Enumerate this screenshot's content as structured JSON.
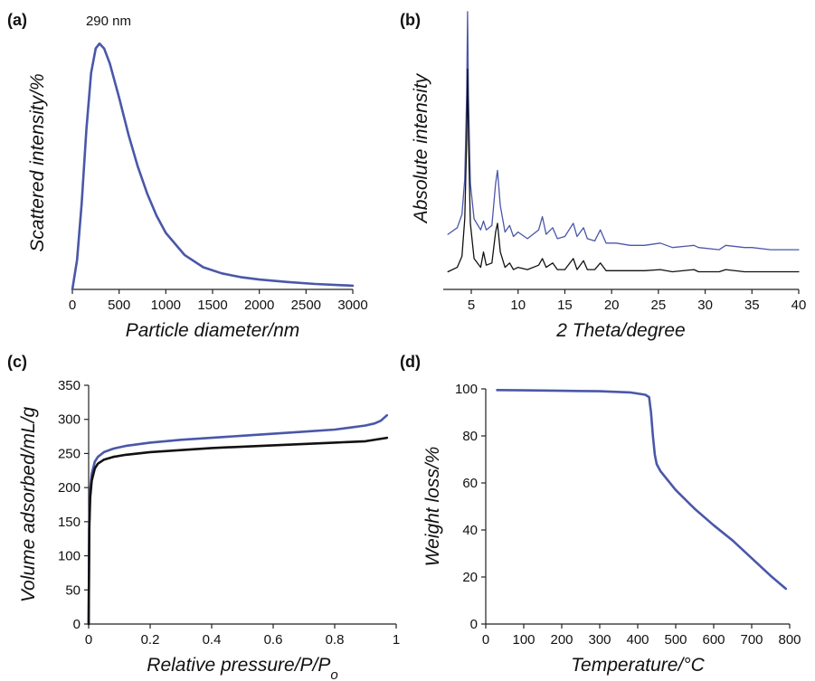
{
  "colors": {
    "blue": "#4a57a9",
    "black": "#111111"
  },
  "chart_data": [
    {
      "panel_label": "(a)",
      "type": "line",
      "xlabel": "Particle diameter/nm",
      "ylabel": "Scattered intensity/%",
      "xlim": [
        0,
        3000
      ],
      "xticks": [
        0,
        500,
        1000,
        1500,
        2000,
        2500,
        3000
      ],
      "grid": false,
      "annotation": "290 nm",
      "annotation_x": 290,
      "series": [
        {
          "color": "#4a57a9",
          "x": [
            0,
            50,
            100,
            150,
            200,
            250,
            290,
            340,
            400,
            500,
            600,
            700,
            800,
            900,
            1000,
            1200,
            1400,
            1600,
            1800,
            2000,
            2300,
            2600,
            3000
          ],
          "y": [
            0,
            12,
            35,
            65,
            88,
            98,
            100,
            98,
            92,
            78,
            63,
            50,
            39,
            30,
            23,
            14,
            9,
            6.5,
            5,
            4,
            3,
            2.2,
            1.5
          ]
        }
      ]
    },
    {
      "panel_label": "(b)",
      "type": "line",
      "xlabel": "2 Theta/degree",
      "ylabel": "Absolute intensity",
      "xlim": [
        2,
        40
      ],
      "xticks": [
        5,
        10,
        15,
        20,
        25,
        30,
        35,
        40
      ],
      "grid": false,
      "series": [
        {
          "color": "#4a57a9",
          "x": [
            2.5,
            3.5,
            4.0,
            4.3,
            4.5,
            4.6,
            4.7,
            4.9,
            5.3,
            6.0,
            6.3,
            6.6,
            7.2,
            7.6,
            7.8,
            8.1,
            8.6,
            9.1,
            9.5,
            10.0,
            11.0,
            12.2,
            12.6,
            13.0,
            13.7,
            14.2,
            15.0,
            15.9,
            16.3,
            17.0,
            17.4,
            18.2,
            18.8,
            19.4,
            20.5,
            22.0,
            23.5,
            25.2,
            26.5,
            28.8,
            29.3,
            31.5,
            32.2,
            34.2,
            35.0,
            37.0,
            40.0
          ],
          "y": [
            17,
            20,
            26,
            42,
            80,
            118,
            80,
            40,
            24,
            19,
            23,
            19,
            21,
            40,
            46,
            30,
            18,
            21,
            16,
            18,
            15,
            19,
            25,
            17,
            20,
            15,
            16,
            22,
            16,
            20,
            15,
            14,
            19,
            13,
            13,
            12,
            12,
            13,
            11,
            12,
            11,
            10,
            12,
            11,
            11,
            10,
            10
          ]
        },
        {
          "color": "#111111",
          "x": [
            2.5,
            3.5,
            4.0,
            4.3,
            4.5,
            4.6,
            4.7,
            4.9,
            5.3,
            6.0,
            6.3,
            6.6,
            7.2,
            7.6,
            7.8,
            8.1,
            8.6,
            9.1,
            9.5,
            10.0,
            11.0,
            12.2,
            12.6,
            13.0,
            13.7,
            14.2,
            15.0,
            15.9,
            16.3,
            17.0,
            17.4,
            18.2,
            18.8,
            19.4,
            20.5,
            22.0,
            23.5,
            25.2,
            26.5,
            28.8,
            29.3,
            31.5,
            32.2,
            34.2,
            35.0,
            37.0,
            40.0
          ],
          "y": [
            0,
            2,
            7,
            24,
            60,
            92,
            60,
            22,
            6,
            2,
            9,
            3,
            4,
            18,
            22,
            9,
            2,
            4,
            1,
            2,
            1,
            3,
            6,
            2,
            4,
            1,
            1,
            6,
            1,
            5,
            1,
            1,
            4,
            0.5,
            0.5,
            0.5,
            0.5,
            1,
            0,
            1,
            0,
            0,
            1,
            0,
            0,
            0,
            0
          ]
        }
      ]
    },
    {
      "panel_label": "(c)",
      "type": "line",
      "xlabel": "Relative pressure/P/P",
      "xlabel_sub": "o",
      "ylabel": "Volume adsorbed/mL/g",
      "xlim": [
        0,
        1
      ],
      "ylim": [
        0,
        350
      ],
      "xticks": [
        0,
        0.2,
        0.4,
        0.6,
        0.8,
        1
      ],
      "yticks": [
        0,
        50,
        100,
        150,
        200,
        250,
        300,
        350
      ],
      "grid": false,
      "series": [
        {
          "color": "#4a57a9",
          "x": [
            0,
            0.002,
            0.005,
            0.01,
            0.02,
            0.03,
            0.05,
            0.08,
            0.12,
            0.2,
            0.3,
            0.4,
            0.5,
            0.6,
            0.7,
            0.8,
            0.85,
            0.9,
            0.93,
            0.95,
            0.97
          ],
          "y": [
            0,
            150,
            195,
            220,
            238,
            245,
            252,
            257,
            261,
            266,
            270,
            273,
            276,
            279,
            282,
            285,
            288,
            291,
            294,
            298,
            306
          ]
        },
        {
          "color": "#111111",
          "x": [
            0,
            0.002,
            0.005,
            0.01,
            0.02,
            0.03,
            0.05,
            0.08,
            0.12,
            0.2,
            0.3,
            0.4,
            0.5,
            0.6,
            0.7,
            0.8,
            0.9,
            0.97
          ],
          "y": [
            0,
            140,
            185,
            210,
            228,
            235,
            241,
            245,
            248,
            252,
            255,
            258,
            260,
            262,
            264,
            266,
            268,
            273
          ]
        }
      ]
    },
    {
      "panel_label": "(d)",
      "type": "line",
      "xlabel": "Temperature/°C",
      "ylabel": "Weight loss/%",
      "xlim": [
        0,
        800
      ],
      "ylim": [
        0,
        100
      ],
      "xticks": [
        0,
        100,
        200,
        300,
        400,
        500,
        600,
        700,
        800
      ],
      "yticks": [
        0,
        20,
        40,
        60,
        80,
        100
      ],
      "grid": false,
      "series": [
        {
          "color": "#4a57a9",
          "x": [
            30,
            100,
            200,
            300,
            380,
            420,
            430,
            435,
            440,
            445,
            450,
            460,
            480,
            500,
            550,
            600,
            650,
            700,
            750,
            790
          ],
          "y": [
            99.5,
            99.4,
            99.2,
            99.0,
            98.5,
            97.5,
            96.5,
            90,
            80,
            72,
            68,
            65,
            61,
            57,
            49,
            42,
            35.5,
            28,
            20.5,
            15
          ]
        }
      ]
    }
  ]
}
